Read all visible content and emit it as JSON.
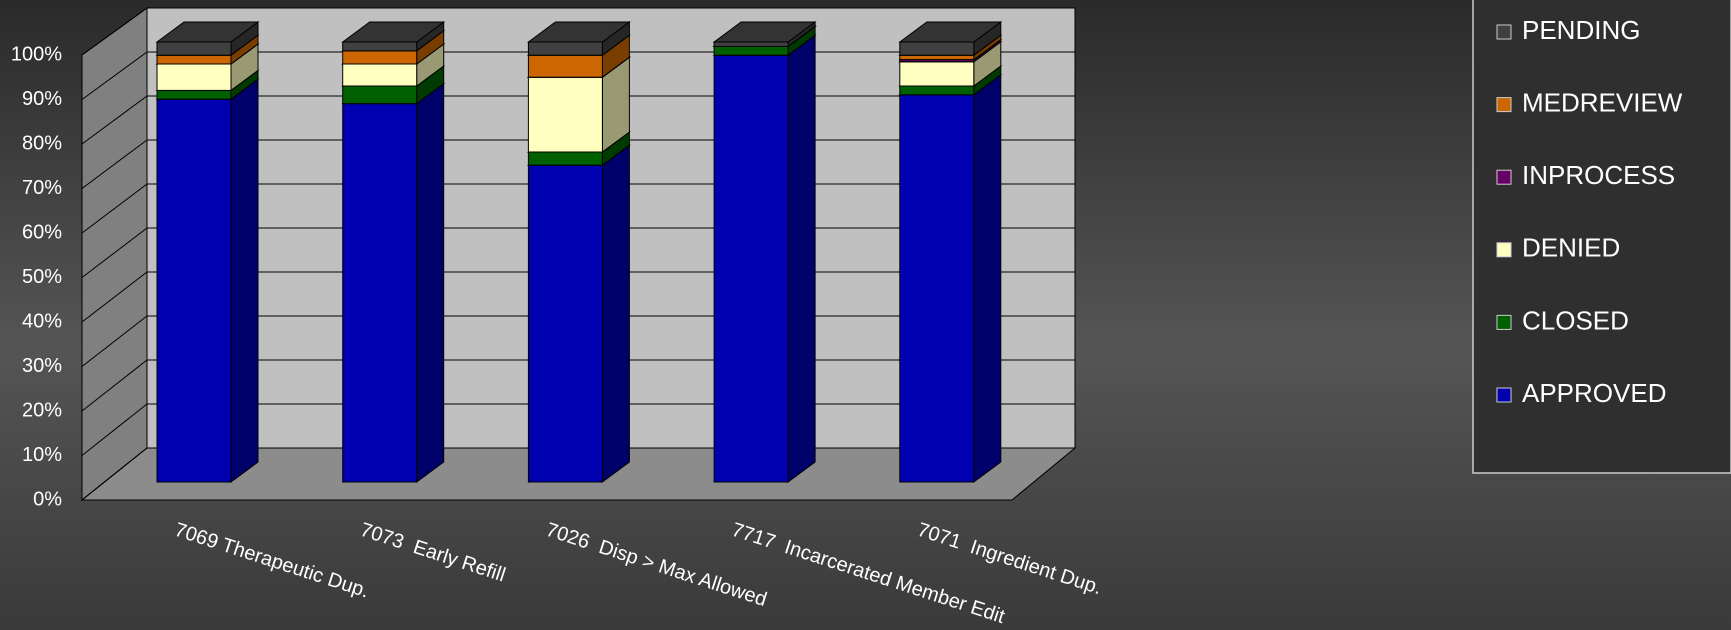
{
  "chart_data": {
    "type": "bar3d_stacked",
    "categories": [
      "7069 Therapeutic Dup.",
      "7073  Early Refill",
      "7026  Disp > Max Allowed",
      "7717  Incarcerated Member Edit",
      "7071  Ingredient Dup."
    ],
    "series": [
      {
        "name": "APPROVED",
        "color": "#0000b0",
        "values": [
          87,
          86,
          72,
          97,
          88
        ]
      },
      {
        "name": "CLOSED",
        "color": "#006000",
        "values": [
          2,
          4,
          3,
          2,
          2
        ]
      },
      {
        "name": "DENIED",
        "color": "#ffffc0",
        "values": [
          6,
          5,
          17,
          0,
          5.5
        ]
      },
      {
        "name": "INPROCESS",
        "color": "#660066",
        "values": [
          0,
          0,
          0,
          0,
          0.5
        ]
      },
      {
        "name": "MEDREVIEW",
        "color": "#cc6600",
        "values": [
          2,
          3,
          5,
          0,
          1
        ]
      },
      {
        "name": "PENDING",
        "color": "#404040",
        "values": [
          3,
          2,
          3,
          1,
          3
        ]
      }
    ],
    "ylim": [
      0,
      100
    ],
    "yticks": [
      {
        "value": 0,
        "label": "0%"
      },
      {
        "value": 10,
        "label": "10%"
      },
      {
        "value": 20,
        "label": "20%"
      },
      {
        "value": 30,
        "label": "30%"
      },
      {
        "value": 40,
        "label": "40%"
      },
      {
        "value": 50,
        "label": "50%"
      },
      {
        "value": 60,
        "label": "60%"
      },
      {
        "value": 70,
        "label": "70%"
      },
      {
        "value": 80,
        "label": "80%"
      },
      {
        "value": 90,
        "label": "90%"
      },
      {
        "value": 100,
        "label": "100%"
      }
    ],
    "grid": true,
    "legend": "right"
  }
}
